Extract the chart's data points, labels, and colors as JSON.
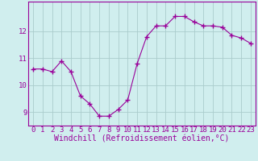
{
  "x": [
    0,
    1,
    2,
    3,
    4,
    5,
    6,
    7,
    8,
    9,
    10,
    11,
    12,
    13,
    14,
    15,
    16,
    17,
    18,
    19,
    20,
    21,
    22,
    23
  ],
  "y": [
    10.6,
    10.6,
    10.5,
    10.9,
    10.5,
    9.6,
    9.3,
    8.85,
    8.85,
    9.1,
    9.45,
    10.8,
    11.8,
    12.2,
    12.2,
    12.55,
    12.55,
    12.35,
    12.2,
    12.2,
    12.15,
    11.85,
    11.75,
    11.55
  ],
  "line_color": "#990099",
  "marker": "+",
  "marker_size": 4,
  "background_color": "#d0eeee",
  "grid_color": "#aacccc",
  "xlabel": "Windchill (Refroidissement éolien,°C)",
  "xlabel_fontsize": 7,
  "tick_fontsize": 6.5,
  "ylim": [
    8.5,
    13.1
  ],
  "xlim": [
    -0.5,
    23.5
  ],
  "yticks": [
    9,
    10,
    11,
    12
  ],
  "xticks": [
    0,
    1,
    2,
    3,
    4,
    5,
    6,
    7,
    8,
    9,
    10,
    11,
    12,
    13,
    14,
    15,
    16,
    17,
    18,
    19,
    20,
    21,
    22,
    23
  ]
}
